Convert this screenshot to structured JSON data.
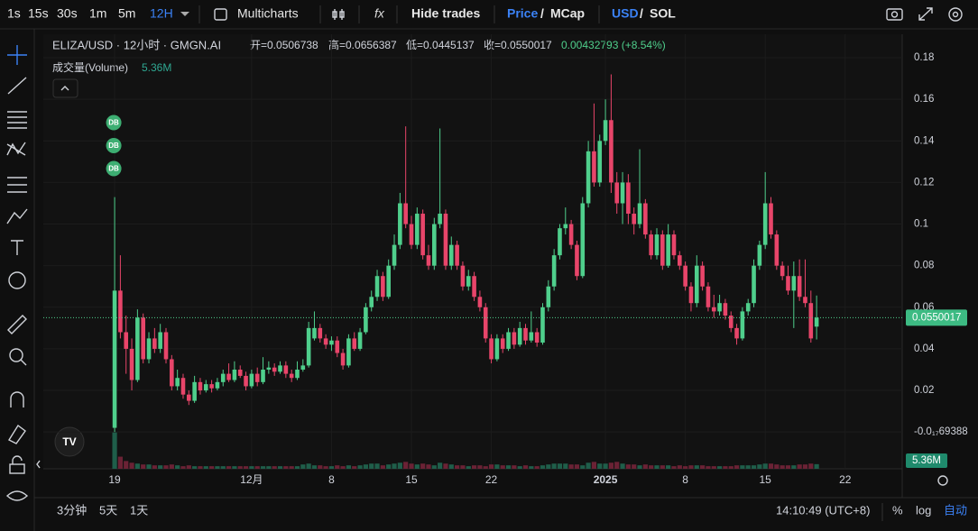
{
  "toolbar": {
    "intervals": [
      "1s",
      "15s",
      "30s",
      "1m",
      "5m",
      "12H"
    ],
    "multicharts": "Multicharts",
    "hide_trades": "Hide trades",
    "price": "Price",
    "mcap": "MCap",
    "usd": "USD",
    "sol": "SOL",
    "sep": "/"
  },
  "bottom_bar": {
    "ranges": [
      "3分钟",
      "5天",
      "1天"
    ],
    "clock": "14:10:49 (UTC+8)",
    "percent": "%",
    "log": "log",
    "auto": "自动"
  },
  "chart_data": {
    "type": "candlestick",
    "title": "ELIZA/USD · 12小时 · GMGN.AI",
    "ohlc_legend": [
      "开=0.0506738",
      "高=0.0656387",
      "低=0.0445137",
      "收=0.0550017",
      "0.00432793 (+8.54%)"
    ],
    "volume_title": "成交量(Volume)",
    "volume_label": "5.36M",
    "markers": [
      "DB",
      "DB",
      "DB"
    ],
    "up_color": "#4fcf8c",
    "down_color": "#e8456a",
    "ylim": [
      -0.0177,
      0.1913
    ],
    "yticks": [
      {
        "value": 0,
        "label": "-0.0₁₇69388"
      },
      0.02,
      0.04,
      0.06,
      0.08,
      0.1,
      0.12,
      0.14,
      0.16,
      0.18
    ],
    "xlim": [
      -12.5,
      138
    ],
    "xticks": [
      {
        "value": 0,
        "label": "19"
      },
      {
        "value": 24,
        "label": "12月"
      },
      {
        "value": 38,
        "label": "8"
      },
      {
        "value": 52,
        "label": "15"
      },
      {
        "value": 66,
        "label": "22"
      },
      {
        "value": 86,
        "label": "2025"
      },
      {
        "value": 100,
        "label": "8"
      },
      {
        "value": 114,
        "label": "15"
      },
      {
        "value": 128,
        "label": "22"
      }
    ],
    "volume_ylim": [
      0,
      50
    ],
    "ohlc": [
      [
        0.002,
        0.113,
        0.0,
        0.068
      ],
      [
        0.068,
        0.085,
        0.045,
        0.048
      ],
      [
        0.048,
        0.056,
        0.028,
        0.04
      ],
      [
        0.04,
        0.045,
        0.02,
        0.025
      ],
      [
        0.025,
        0.059,
        0.024,
        0.055
      ],
      [
        0.055,
        0.057,
        0.033,
        0.035
      ],
      [
        0.035,
        0.048,
        0.033,
        0.045
      ],
      [
        0.045,
        0.05,
        0.038,
        0.04
      ],
      [
        0.04,
        0.052,
        0.038,
        0.048
      ],
      [
        0.048,
        0.05,
        0.033,
        0.035
      ],
      [
        0.035,
        0.037,
        0.02,
        0.022
      ],
      [
        0.022,
        0.03,
        0.02,
        0.026
      ],
      [
        0.026,
        0.028,
        0.016,
        0.018
      ],
      [
        0.018,
        0.02,
        0.013,
        0.015
      ],
      [
        0.015,
        0.027,
        0.014,
        0.024
      ],
      [
        0.024,
        0.026,
        0.018,
        0.02
      ],
      [
        0.02,
        0.025,
        0.019,
        0.023
      ],
      [
        0.023,
        0.025,
        0.019,
        0.021
      ],
      [
        0.021,
        0.026,
        0.02,
        0.024
      ],
      [
        0.024,
        0.03,
        0.022,
        0.028
      ],
      [
        0.028,
        0.033,
        0.024,
        0.025
      ],
      [
        0.025,
        0.034,
        0.024,
        0.03
      ],
      [
        0.03,
        0.032,
        0.026,
        0.027
      ],
      [
        0.027,
        0.029,
        0.02,
        0.022
      ],
      [
        0.022,
        0.03,
        0.021,
        0.028
      ],
      [
        0.028,
        0.031,
        0.022,
        0.024
      ],
      [
        0.024,
        0.036,
        0.023,
        0.03
      ],
      [
        0.03,
        0.034,
        0.028,
        0.031
      ],
      [
        0.031,
        0.033,
        0.027,
        0.029
      ],
      [
        0.029,
        0.034,
        0.028,
        0.032
      ],
      [
        0.032,
        0.034,
        0.026,
        0.028
      ],
      [
        0.028,
        0.03,
        0.024,
        0.026
      ],
      [
        0.026,
        0.034,
        0.025,
        0.03
      ],
      [
        0.03,
        0.035,
        0.029,
        0.032
      ],
      [
        0.032,
        0.053,
        0.031,
        0.05
      ],
      [
        0.045,
        0.058,
        0.044,
        0.05
      ],
      [
        0.05,
        0.052,
        0.043,
        0.045
      ],
      [
        0.045,
        0.047,
        0.04,
        0.042
      ],
      [
        0.042,
        0.046,
        0.039,
        0.044
      ],
      [
        0.044,
        0.046,
        0.036,
        0.038
      ],
      [
        0.038,
        0.04,
        0.03,
        0.032
      ],
      [
        0.032,
        0.047,
        0.031,
        0.045
      ],
      [
        0.045,
        0.048,
        0.039,
        0.04
      ],
      [
        0.04,
        0.05,
        0.039,
        0.048
      ],
      [
        0.048,
        0.062,
        0.047,
        0.06
      ],
      [
        0.06,
        0.068,
        0.058,
        0.065
      ],
      [
        0.065,
        0.078,
        0.063,
        0.075
      ],
      [
        0.075,
        0.077,
        0.063,
        0.065
      ],
      [
        0.065,
        0.083,
        0.064,
        0.08
      ],
      [
        0.08,
        0.095,
        0.078,
        0.09
      ],
      [
        0.09,
        0.115,
        0.088,
        0.11
      ],
      [
        0.11,
        0.147,
        0.098,
        0.1
      ],
      [
        0.1,
        0.104,
        0.088,
        0.09
      ],
      [
        0.09,
        0.108,
        0.088,
        0.105
      ],
      [
        0.105,
        0.107,
        0.083,
        0.085
      ],
      [
        0.085,
        0.09,
        0.078,
        0.08
      ],
      [
        0.08,
        0.103,
        0.078,
        0.1
      ],
      [
        0.1,
        0.146,
        0.098,
        0.105
      ],
      [
        0.105,
        0.107,
        0.078,
        0.08
      ],
      [
        0.08,
        0.094,
        0.078,
        0.09
      ],
      [
        0.09,
        0.092,
        0.078,
        0.08
      ],
      [
        0.08,
        0.082,
        0.068,
        0.07
      ],
      [
        0.07,
        0.078,
        0.068,
        0.075
      ],
      [
        0.075,
        0.077,
        0.063,
        0.065
      ],
      [
        0.065,
        0.068,
        0.058,
        0.06
      ],
      [
        0.06,
        0.062,
        0.043,
        0.045
      ],
      [
        0.045,
        0.047,
        0.033,
        0.035
      ],
      [
        0.035,
        0.047,
        0.034,
        0.045
      ],
      [
        0.045,
        0.047,
        0.038,
        0.04
      ],
      [
        0.04,
        0.05,
        0.039,
        0.048
      ],
      [
        0.048,
        0.05,
        0.04,
        0.042
      ],
      [
        0.042,
        0.053,
        0.041,
        0.05
      ],
      [
        0.05,
        0.052,
        0.042,
        0.044
      ],
      [
        0.044,
        0.058,
        0.043,
        0.048
      ],
      [
        0.048,
        0.05,
        0.041,
        0.043
      ],
      [
        0.043,
        0.062,
        0.042,
        0.06
      ],
      [
        0.06,
        0.073,
        0.058,
        0.07
      ],
      [
        0.07,
        0.088,
        0.068,
        0.085
      ],
      [
        0.085,
        0.1,
        0.083,
        0.098
      ],
      [
        0.098,
        0.108,
        0.095,
        0.1
      ],
      [
        0.1,
        0.102,
        0.088,
        0.09
      ],
      [
        0.09,
        0.092,
        0.073,
        0.075
      ],
      [
        0.075,
        0.113,
        0.074,
        0.11
      ],
      [
        0.11,
        0.14,
        0.108,
        0.135
      ],
      [
        0.135,
        0.158,
        0.118,
        0.12
      ],
      [
        0.12,
        0.143,
        0.118,
        0.14
      ],
      [
        0.14,
        0.16,
        0.138,
        0.15
      ],
      [
        0.15,
        0.172,
        0.115,
        0.12
      ],
      [
        0.12,
        0.125,
        0.105,
        0.11
      ],
      [
        0.11,
        0.125,
        0.1,
        0.12
      ],
      [
        0.12,
        0.124,
        0.1,
        0.105
      ],
      [
        0.105,
        0.108,
        0.095,
        0.1
      ],
      [
        0.1,
        0.136,
        0.098,
        0.11
      ],
      [
        0.11,
        0.112,
        0.093,
        0.095
      ],
      [
        0.095,
        0.097,
        0.083,
        0.085
      ],
      [
        0.085,
        0.098,
        0.083,
        0.095
      ],
      [
        0.095,
        0.097,
        0.078,
        0.08
      ],
      [
        0.08,
        0.1,
        0.079,
        0.095
      ],
      [
        0.095,
        0.097,
        0.083,
        0.085
      ],
      [
        0.085,
        0.087,
        0.078,
        0.08
      ],
      [
        0.08,
        0.082,
        0.068,
        0.07
      ],
      [
        0.07,
        0.072,
        0.058,
        0.062
      ],
      [
        0.062,
        0.085,
        0.06,
        0.08
      ],
      [
        0.08,
        0.082,
        0.068,
        0.07
      ],
      [
        0.07,
        0.072,
        0.058,
        0.06
      ],
      [
        0.06,
        0.066,
        0.055,
        0.058
      ],
      [
        0.058,
        0.066,
        0.056,
        0.062
      ],
      [
        0.062,
        0.064,
        0.054,
        0.056
      ],
      [
        0.056,
        0.058,
        0.048,
        0.05
      ],
      [
        0.05,
        0.052,
        0.042,
        0.045
      ],
      [
        0.045,
        0.06,
        0.044,
        0.058
      ],
      [
        0.058,
        0.064,
        0.056,
        0.062
      ],
      [
        0.062,
        0.083,
        0.06,
        0.08
      ],
      [
        0.08,
        0.092,
        0.078,
        0.09
      ],
      [
        0.09,
        0.125,
        0.088,
        0.11
      ],
      [
        0.11,
        0.113,
        0.093,
        0.095
      ],
      [
        0.095,
        0.097,
        0.078,
        0.08
      ],
      [
        0.08,
        0.082,
        0.073,
        0.075
      ],
      [
        0.075,
        0.08,
        0.066,
        0.068
      ],
      [
        0.068,
        0.082,
        0.05,
        0.075
      ],
      [
        0.075,
        0.083,
        0.063,
        0.065
      ],
      [
        0.065,
        0.083,
        0.06,
        0.062
      ],
      [
        0.062,
        0.068,
        0.043,
        0.045
      ],
      [
        0.0506738,
        0.0656387,
        0.0445137,
        0.0550017
      ]
    ],
    "volumes": [
      42,
      14,
      9,
      7,
      6,
      5,
      5,
      4,
      4,
      4,
      5,
      4,
      3,
      4,
      3,
      3,
      3,
      3,
      3,
      3,
      3,
      3,
      3,
      3,
      3,
      3,
      3,
      3,
      3,
      3,
      3,
      3,
      3,
      5,
      6,
      4,
      4,
      3,
      3,
      4,
      3,
      4,
      3,
      4,
      5,
      6,
      6,
      4,
      5,
      6,
      7,
      8,
      6,
      5,
      6,
      5,
      4,
      7,
      6,
      5,
      4,
      4,
      3,
      4,
      4,
      3,
      5,
      5,
      4,
      4,
      4,
      3,
      4,
      3,
      3,
      4,
      5,
      6,
      6,
      6,
      5,
      5,
      4,
      7,
      8,
      6,
      6,
      7,
      8,
      6,
      5,
      5,
      4,
      5,
      4,
      4,
      4,
      4,
      3,
      4,
      3,
      4,
      4,
      4,
      3,
      3,
      3,
      3,
      3,
      4,
      4,
      4,
      4,
      5,
      6,
      6,
      5,
      4,
      4,
      4,
      5,
      5,
      6,
      5.36
    ]
  }
}
